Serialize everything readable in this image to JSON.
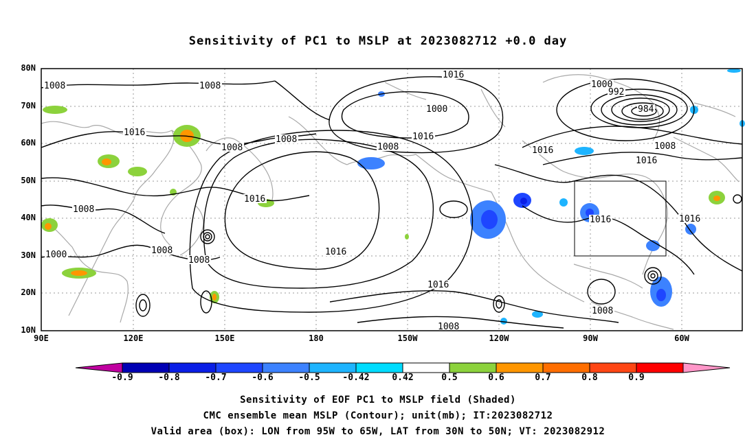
{
  "title": "Sensitivity of PC1 to MSLP at 2023082712 +0.0 day",
  "lat_labels": [
    "80N",
    "70N",
    "60N",
    "50N",
    "40N",
    "30N",
    "20N",
    "10N"
  ],
  "lon_labels": [
    "90E",
    "120E",
    "150E",
    "180",
    "150W",
    "120W",
    "90W",
    "60W"
  ],
  "colorbar": {
    "ticks": [
      "-0.9",
      "-0.8",
      "-0.7",
      "-0.6",
      "-0.5",
      "-0.42",
      "0.42",
      "0.5",
      "0.6",
      "0.7",
      "0.8",
      "0.9"
    ],
    "colors": [
      "#c000a0",
      "#0000b4",
      "#0a1ee6",
      "#1e46ff",
      "#3c82ff",
      "#1eb4ff",
      "#00dcff",
      "#ffffff",
      "#8cd23c",
      "#ff9600",
      "#ff6e00",
      "#ff4614",
      "#ff0000",
      "#ff96c8"
    ]
  },
  "contour_labels": [
    {
      "text": "1008"
    },
    {
      "text": "1008"
    },
    {
      "text": "1016"
    },
    {
      "text": "1008"
    },
    {
      "text": "1008"
    },
    {
      "text": "1016"
    },
    {
      "text": "1000"
    },
    {
      "text": "1008"
    },
    {
      "text": "1008"
    },
    {
      "text": "1016"
    },
    {
      "text": "1008"
    },
    {
      "text": "1000"
    },
    {
      "text": "1016"
    },
    {
      "text": "1016"
    },
    {
      "text": "1008"
    },
    {
      "text": "1000"
    },
    {
      "text": "992"
    },
    {
      "text": "984"
    },
    {
      "text": "1016"
    },
    {
      "text": "1008"
    },
    {
      "text": "1016"
    },
    {
      "text": "1016"
    },
    {
      "text": "1016"
    },
    {
      "text": "1008"
    },
    {
      "text": "1016"
    },
    {
      "text": "1008"
    }
  ],
  "valid_box": {
    "lon_from": "95W",
    "lon_to": "65W",
    "lat_from": "30N",
    "lat_to": "50N"
  },
  "captions": {
    "line1": "Sensitivity of EOF PC1 to MSLP field (Shaded)",
    "line2": "CMC ensemble mean MSLP (Contour); unit(mb); IT:2023082712",
    "line3": "Valid area (box): LON from 95W to 65W, LAT from 30N to 50N; VT: 2023082912"
  }
}
